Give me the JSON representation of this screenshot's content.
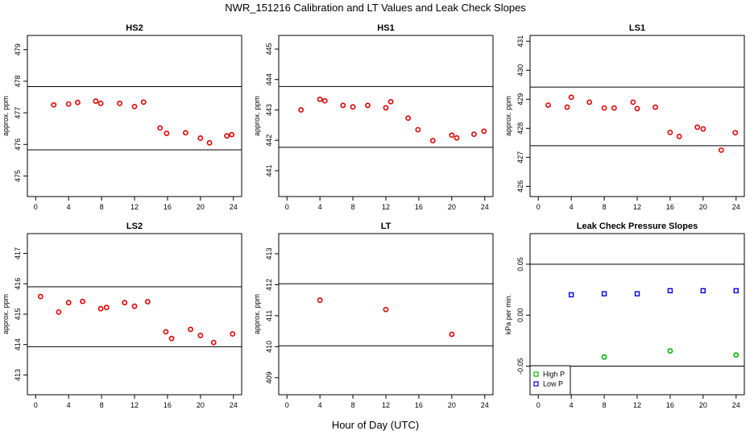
{
  "figure": {
    "title": "NWR_151216  Calibration and LT Values and Leak Check Slopes",
    "xlabel": "Hour of Day (UTC)"
  },
  "colors": {
    "red": "#e00000",
    "green": "#00b400",
    "blue": "#0000e0",
    "axis": "#000000"
  },
  "chart_data": [
    {
      "type": "scatter",
      "title": "HS2",
      "ylabel": "approx. ppm",
      "xlim": [
        -1,
        25
      ],
      "ylim": [
        474.35,
        479.45
      ],
      "xticks": [
        0,
        4,
        8,
        12,
        16,
        20,
        24
      ],
      "yticks": [
        475,
        476,
        477,
        478,
        479
      ],
      "reference_lines": [
        477.83,
        475.83
      ],
      "series": [
        {
          "name": "values",
          "color": "red",
          "marker": "circle",
          "x": [
            2.2,
            4.0,
            5.1,
            7.3,
            7.9,
            10.2,
            12.0,
            13.1,
            15.1,
            15.9,
            18.2,
            20.0,
            21.1,
            23.2,
            23.8
          ],
          "y": [
            477.25,
            477.28,
            477.33,
            477.37,
            477.3,
            477.3,
            477.2,
            477.34,
            476.52,
            476.35,
            476.37,
            476.2,
            476.05,
            476.27,
            476.31
          ]
        }
      ]
    },
    {
      "type": "scatter",
      "title": "HS1",
      "ylabel": "approx. ppm",
      "xlim": [
        -1,
        25
      ],
      "ylim": [
        440.15,
        445.45
      ],
      "xticks": [
        0,
        4,
        8,
        12,
        16,
        20,
        24
      ],
      "yticks": [
        441,
        442,
        443,
        444,
        445
      ],
      "reference_lines": [
        443.77,
        441.77
      ],
      "series": [
        {
          "name": "values",
          "color": "red",
          "marker": "circle",
          "x": [
            1.7,
            4.0,
            4.6,
            6.8,
            8.0,
            9.8,
            12.0,
            12.6,
            14.7,
            15.9,
            17.7,
            20.0,
            20.6,
            22.7,
            23.9
          ],
          "y": [
            443.0,
            443.35,
            443.3,
            443.15,
            443.1,
            443.15,
            443.07,
            443.27,
            442.73,
            442.35,
            441.99,
            442.17,
            442.08,
            442.2,
            442.3
          ]
        }
      ]
    },
    {
      "type": "scatter",
      "title": "LS1",
      "ylabel": "approx. ppm",
      "xlim": [
        -1,
        25
      ],
      "ylim": [
        425.65,
        431.2
      ],
      "xticks": [
        0,
        4,
        8,
        12,
        16,
        20,
        24
      ],
      "yticks": [
        426,
        427,
        428,
        429,
        430,
        431
      ],
      "reference_lines": [
        429.42,
        427.4
      ],
      "series": [
        {
          "name": "values",
          "color": "red",
          "marker": "circle",
          "x": [
            1.2,
            3.5,
            4.0,
            6.2,
            8.0,
            9.2,
            11.5,
            12.0,
            14.2,
            16.0,
            17.1,
            19.3,
            20.0,
            22.2,
            23.9
          ],
          "y": [
            428.8,
            428.73,
            429.07,
            428.9,
            428.7,
            428.7,
            428.9,
            428.68,
            428.73,
            427.86,
            427.72,
            428.04,
            427.98,
            427.25,
            427.85
          ]
        }
      ]
    },
    {
      "type": "scatter",
      "title": "LS2",
      "ylabel": "approx. ppm",
      "xlim": [
        -1,
        25
      ],
      "ylim": [
        412.35,
        417.65
      ],
      "xticks": [
        0,
        4,
        8,
        12,
        16,
        20,
        24
      ],
      "yticks": [
        413,
        414,
        415,
        416,
        417
      ],
      "reference_lines": [
        415.9,
        413.93
      ],
      "series": [
        {
          "name": "values",
          "color": "red",
          "marker": "circle",
          "x": [
            0.6,
            2.8,
            4.0,
            5.7,
            7.9,
            8.6,
            10.8,
            12.0,
            13.6,
            15.8,
            16.5,
            18.8,
            20.0,
            21.6,
            23.9
          ],
          "y": [
            415.58,
            415.07,
            415.38,
            415.42,
            415.18,
            415.22,
            415.38,
            415.26,
            415.41,
            414.42,
            414.2,
            414.5,
            414.3,
            414.07,
            414.35
          ]
        }
      ]
    },
    {
      "type": "scatter",
      "title": "LT",
      "ylabel": "approx. ppm",
      "xlim": [
        -1,
        25
      ],
      "ylim": [
        408.45,
        413.65
      ],
      "xticks": [
        0,
        4,
        8,
        12,
        16,
        20,
        24
      ],
      "yticks": [
        409,
        410,
        411,
        412,
        413
      ],
      "reference_lines": [
        412.03,
        410.03
      ],
      "series": [
        {
          "name": "values",
          "color": "red",
          "marker": "circle",
          "x": [
            4.0,
            12.0,
            20.0
          ],
          "y": [
            411.5,
            411.2,
            410.4
          ]
        }
      ]
    },
    {
      "type": "scatter",
      "title": "Leak Check Pressure Slopes",
      "ylabel": "kPa per min.",
      "xlim": [
        -1,
        25
      ],
      "ylim": [
        -0.078,
        0.08
      ],
      "xticks": [
        0,
        4,
        8,
        12,
        16,
        20,
        24
      ],
      "yticks": [
        -0.05,
        0.0,
        0.05
      ],
      "ytick_labels": [
        "-0.05",
        "0.00",
        "0.05"
      ],
      "reference_lines": [
        0.05,
        -0.05
      ],
      "legend": {
        "position": "bottom-left",
        "entries": [
          "High P",
          "Low P"
        ]
      },
      "series": [
        {
          "name": "High P",
          "color": "green",
          "marker": "circle",
          "x": [
            8.0,
            16.0,
            24.0
          ],
          "y": [
            -0.041,
            -0.035,
            -0.039
          ]
        },
        {
          "name": "Low P",
          "color": "blue",
          "marker": "square",
          "x": [
            4.0,
            8.0,
            12.0,
            16.0,
            20.0,
            24.0
          ],
          "y": [
            0.02,
            0.021,
            0.021,
            0.024,
            0.024,
            0.024
          ]
        }
      ]
    }
  ]
}
